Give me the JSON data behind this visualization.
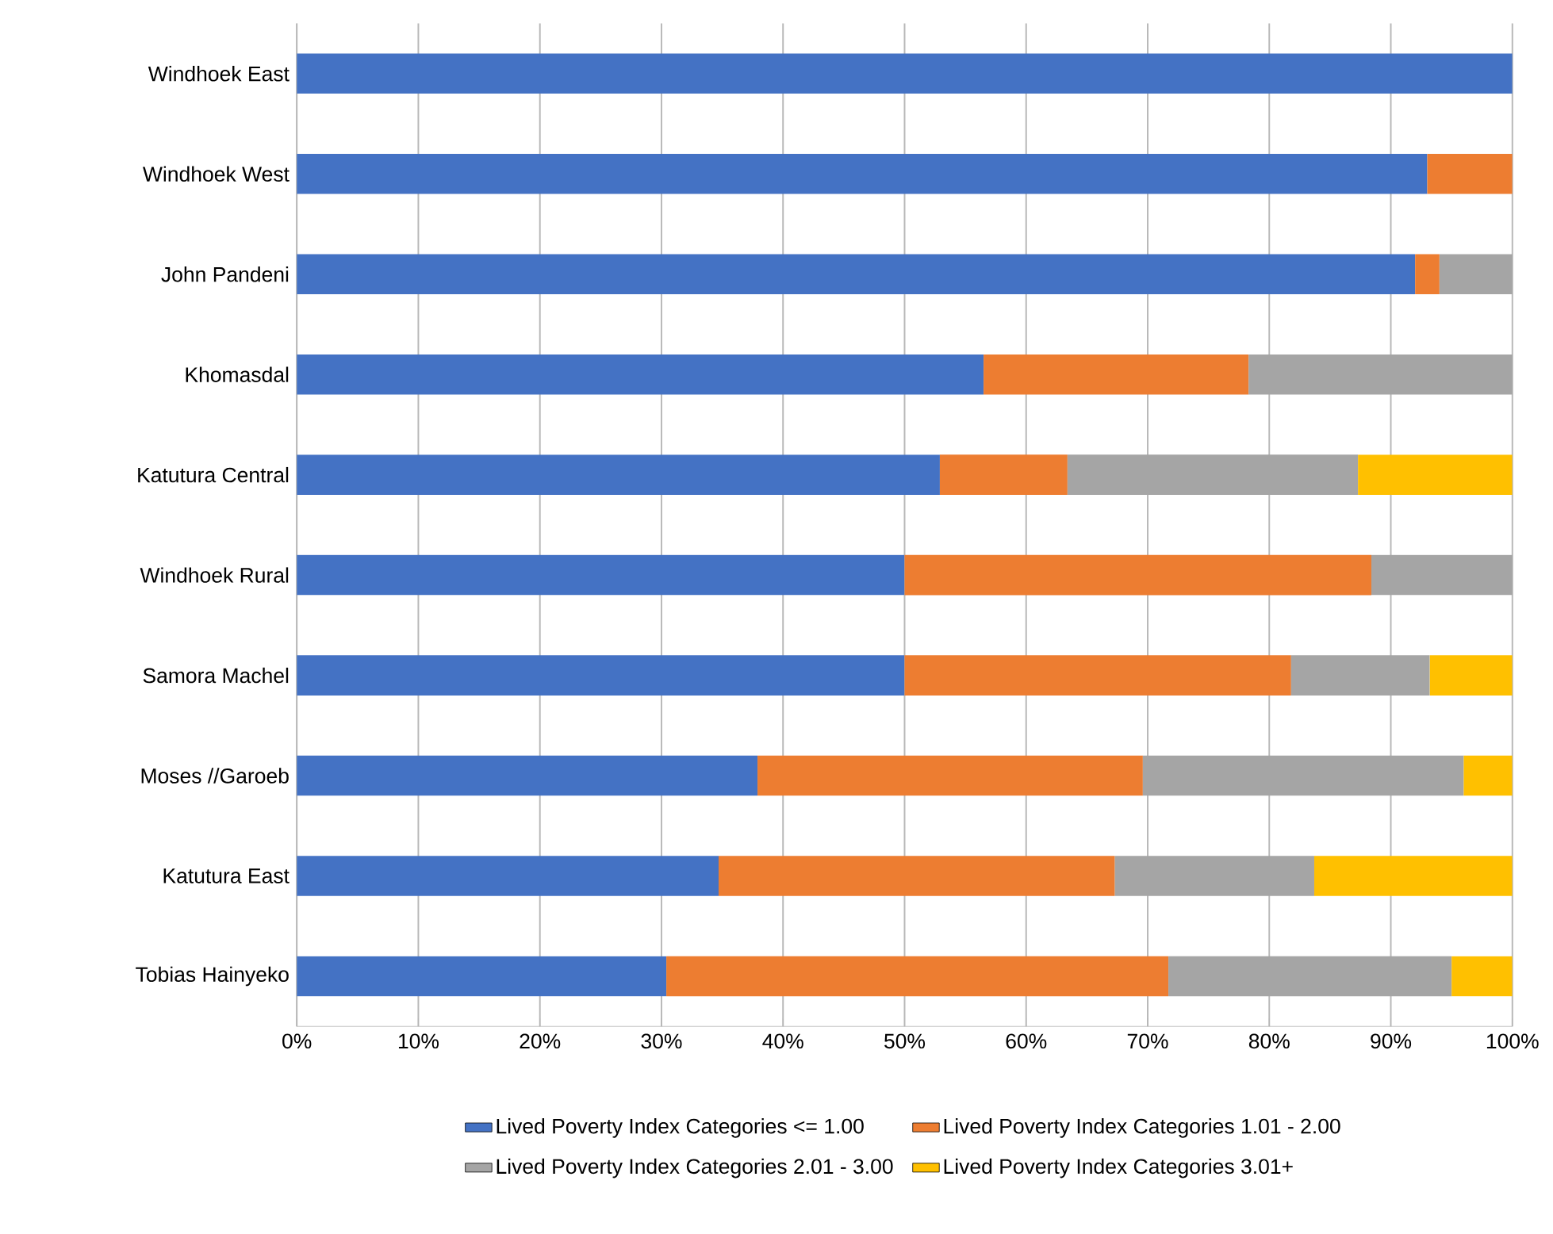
{
  "chart_data": {
    "type": "bar",
    "orientation": "horizontal",
    "stacked": true,
    "categories": [
      "Windhoek East",
      "Windhoek West",
      "John Pandeni",
      "Khomasdal",
      "Katutura Central",
      "Windhoek Rural",
      "Samora Machel",
      "Moses //Garoeb",
      "Katutura East",
      "Tobias Hainyeko"
    ],
    "series": [
      {
        "name": "Lived Poverty Index Categories <= 1.00",
        "color": "#4472c4",
        "values": [
          100,
          93,
          92,
          56.5,
          52.9,
          50,
          50,
          37.9,
          34.7,
          30.4
        ]
      },
      {
        "name": "Lived Poverty Index Categories 1.01 - 2.00",
        "color": "#ed7d31",
        "values": [
          null,
          7,
          2,
          21.8,
          10.5,
          38.4,
          31.8,
          31.7,
          32.6,
          41.3
        ]
      },
      {
        "name": "Lived Poverty Index Categories 2.01 - 3.00",
        "color": "#a5a5a5",
        "values": [
          null,
          null,
          6,
          21.7,
          23.9,
          11.6,
          11.4,
          26.4,
          16.4,
          23.3
        ]
      },
      {
        "name": "Lived Poverty Index Categories 3.01+",
        "color": "#ffc000",
        "values": [
          null,
          null,
          null,
          null,
          12.7,
          null,
          6.8,
          4.0,
          16.3,
          5.0
        ]
      }
    ],
    "xlim": [
      0,
      100
    ],
    "xticks": [
      {
        "value": 0,
        "label": "0%"
      },
      {
        "value": 10,
        "label": "10%"
      },
      {
        "value": 20,
        "label": "20%"
      },
      {
        "value": 30,
        "label": "30%"
      },
      {
        "value": 40,
        "label": "40%"
      },
      {
        "value": 50,
        "label": "50%"
      },
      {
        "value": 60,
        "label": "60%"
      },
      {
        "value": 70,
        "label": "70%"
      },
      {
        "value": 80,
        "label": "80%"
      },
      {
        "value": 90,
        "label": "90%"
      },
      {
        "value": 100,
        "label": "100%"
      }
    ],
    "grid": "x",
    "legend": "bottom"
  }
}
